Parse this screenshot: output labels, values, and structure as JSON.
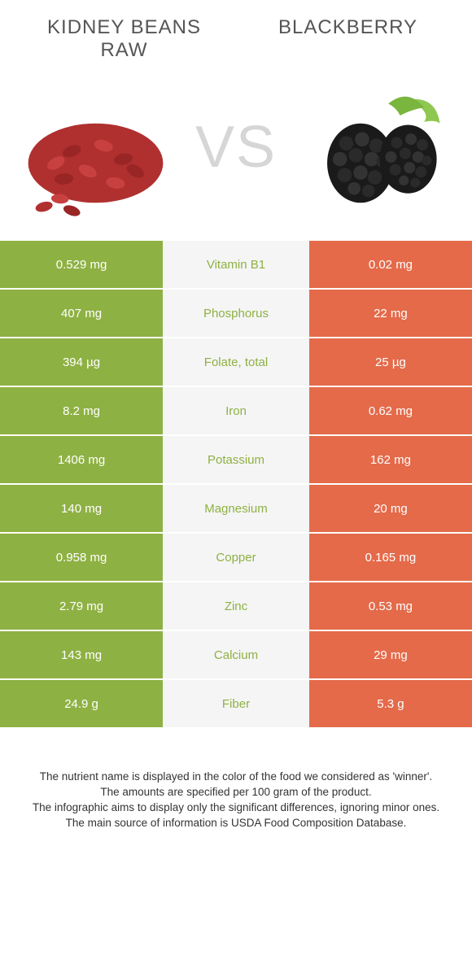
{
  "colors": {
    "left_bg": "#8eb143",
    "mid_bg": "#f5f5f5",
    "right_bg": "#e46a4a",
    "left_text": "#ffffff",
    "right_text": "#ffffff",
    "nutrient_winner_left": "#8eb143",
    "nutrient_winner_right": "#e46a4a",
    "vs_color": "#d6d6d6",
    "title_color": "#555555"
  },
  "header": {
    "left_title": "Kidney beans raw",
    "right_title": "Blackberry",
    "vs": "VS"
  },
  "rows": [
    {
      "nutrient": "Vitamin B1",
      "left": "0.529 mg",
      "right": "0.02 mg",
      "winner": "left"
    },
    {
      "nutrient": "Phosphorus",
      "left": "407 mg",
      "right": "22 mg",
      "winner": "left"
    },
    {
      "nutrient": "Folate, total",
      "left": "394 µg",
      "right": "25 µg",
      "winner": "left"
    },
    {
      "nutrient": "Iron",
      "left": "8.2 mg",
      "right": "0.62 mg",
      "winner": "left"
    },
    {
      "nutrient": "Potassium",
      "left": "1406 mg",
      "right": "162 mg",
      "winner": "left"
    },
    {
      "nutrient": "Magnesium",
      "left": "140 mg",
      "right": "20 mg",
      "winner": "left"
    },
    {
      "nutrient": "Copper",
      "left": "0.958 mg",
      "right": "0.165 mg",
      "winner": "left"
    },
    {
      "nutrient": "Zinc",
      "left": "2.79 mg",
      "right": "0.53 mg",
      "winner": "left"
    },
    {
      "nutrient": "Calcium",
      "left": "143 mg",
      "right": "29 mg",
      "winner": "left"
    },
    {
      "nutrient": "Fiber",
      "left": "24.9 g",
      "right": "5.3 g",
      "winner": "left"
    }
  ],
  "footer": {
    "line1": "The nutrient name is displayed in the color of the food we considered as 'winner'.",
    "line2": "The amounts are specified per 100 gram of the product.",
    "line3": "The infographic aims to display only the significant differences, ignoring minor ones.",
    "line4": "The main source of information is USDA Food Composition Database."
  }
}
